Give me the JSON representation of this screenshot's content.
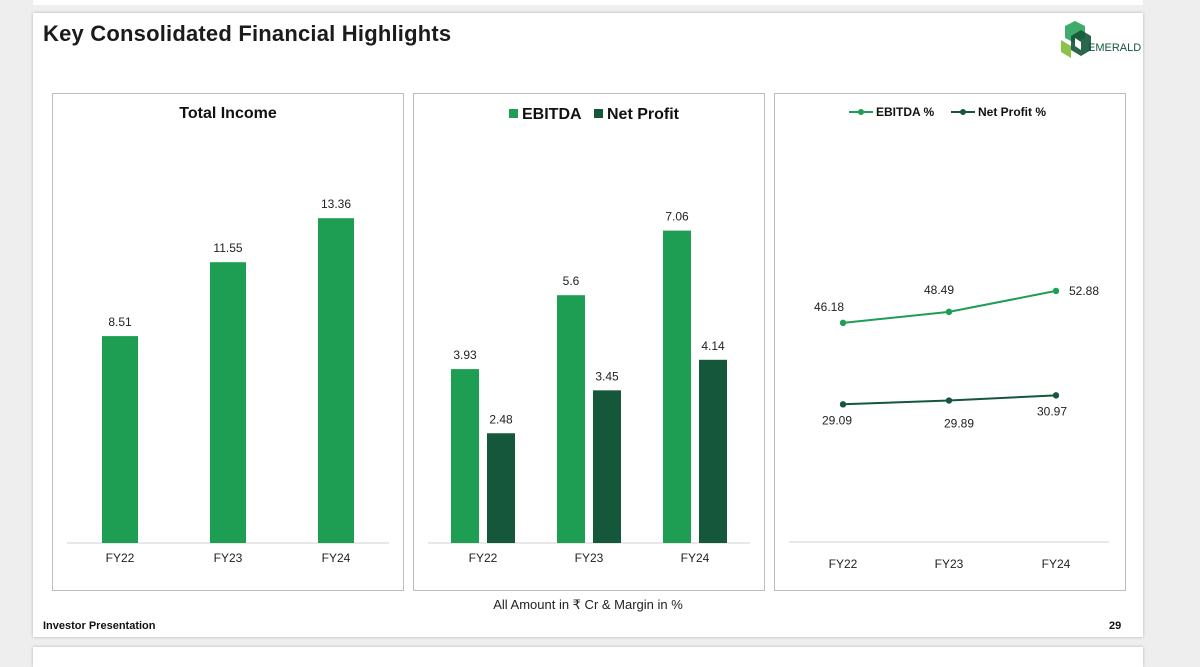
{
  "page": {
    "title": "Key Consolidated Financial Highlights",
    "footer_note": "All Amount in ₹ Cr & Margin in %",
    "footer_left": "Investor Presentation",
    "page_number": "29"
  },
  "logo": {
    "text": "EMERALD"
  },
  "colors": {
    "light_green": "#1e9e52",
    "dark_green": "#14573a",
    "axis": "#d0d0d0"
  },
  "chart_data": [
    {
      "type": "bar",
      "title": "Total Income",
      "categories": [
        "FY22",
        "FY23",
        "FY24"
      ],
      "series": [
        {
          "values": [
            8.51,
            11.55,
            13.36
          ],
          "labels": [
            "8.51",
            "11.55",
            "13.36"
          ],
          "color": "#1e9e52"
        }
      ],
      "ylim": [
        0,
        16
      ]
    },
    {
      "type": "bar",
      "categories": [
        "FY22",
        "FY23",
        "FY24"
      ],
      "series": [
        {
          "name": "EBITDA",
          "values": [
            3.93,
            5.6,
            7.06
          ],
          "labels": [
            "3.93",
            "5.6",
            "7.06"
          ],
          "color": "#1e9e52"
        },
        {
          "name": "Net Profit",
          "values": [
            2.48,
            3.45,
            4.14
          ],
          "labels": [
            "2.48",
            "3.45",
            "4.14"
          ],
          "color": "#14573a"
        }
      ],
      "legend": "top-center",
      "ylim": [
        0,
        8
      ]
    },
    {
      "type": "line",
      "categories": [
        "FY22",
        "FY23",
        "FY24"
      ],
      "series": [
        {
          "name": "EBITDA %",
          "values": [
            46.18,
            48.49,
            52.88
          ],
          "labels": [
            "46.18",
            "48.49",
            "52.88"
          ],
          "color": "#1e9e52"
        },
        {
          "name": "Net Profit %",
          "values": [
            29.09,
            29.89,
            30.97
          ],
          "labels": [
            "29.09",
            "29.89",
            "30.97"
          ],
          "color": "#14573a"
        }
      ],
      "legend": "top-center",
      "ylim": [
        0,
        90
      ]
    }
  ]
}
